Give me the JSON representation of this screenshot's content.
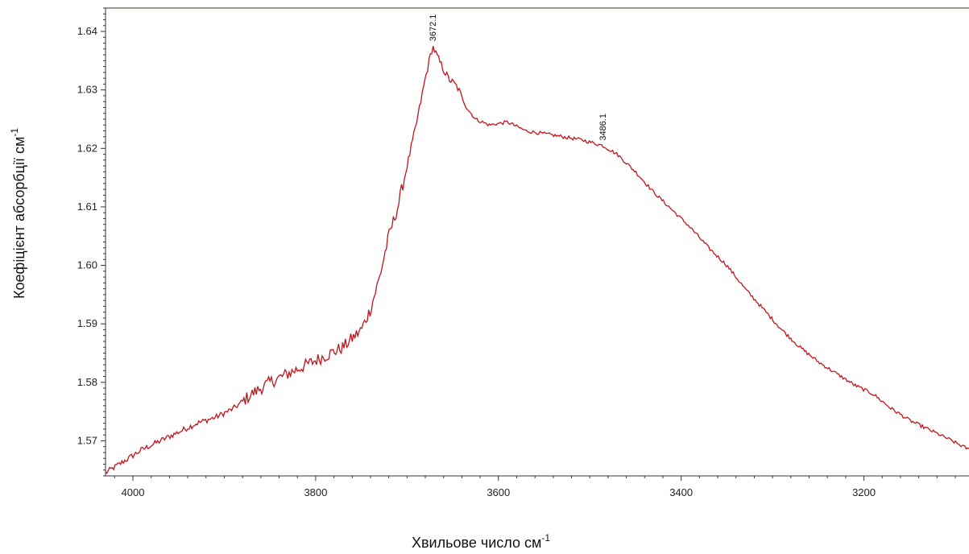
{
  "chart_data": {
    "type": "line",
    "xlabel": "Хвильове число см",
    "xlabel_sup": "-1",
    "ylabel": "Коефіцієнт абсорбції см",
    "ylabel_sup": "-1",
    "xlim": [
      4030,
      3085
    ],
    "ylim": [
      1.564,
      1.644
    ],
    "x_reversed": true,
    "grid": false,
    "x_ticks": [
      {
        "value": 4000,
        "label": "4000"
      },
      {
        "value": 3800,
        "label": "3800"
      },
      {
        "value": 3600,
        "label": "3600"
      },
      {
        "value": 3400,
        "label": "3400"
      },
      {
        "value": 3200,
        "label": "3200"
      }
    ],
    "y_ticks": [
      {
        "value": 1.57,
        "label": "1.57"
      },
      {
        "value": 1.58,
        "label": "1.58"
      },
      {
        "value": 1.59,
        "label": "1.59"
      },
      {
        "value": 1.6,
        "label": "1.60"
      },
      {
        "value": 1.61,
        "label": "1.61"
      },
      {
        "value": 1.62,
        "label": "1.62"
      },
      {
        "value": 1.63,
        "label": "1.63"
      },
      {
        "value": 1.64,
        "label": "1.64"
      }
    ],
    "annotations": [
      {
        "x": 3672.1,
        "y": 1.6375,
        "label": "3672.1"
      },
      {
        "x": 3486.1,
        "y": 1.6205,
        "label": "3486.1"
      }
    ],
    "series": [
      {
        "color": "#c0141c",
        "x": [
          4030,
          4010,
          3990,
          3970,
          3950,
          3930,
          3910,
          3890,
          3870,
          3850,
          3830,
          3810,
          3790,
          3770,
          3750,
          3740,
          3730,
          3720,
          3710,
          3700,
          3690,
          3680,
          3672.1,
          3665,
          3655,
          3645,
          3635,
          3625,
          3610,
          3590,
          3570,
          3550,
          3530,
          3510,
          3486.1,
          3470,
          3450,
          3430,
          3410,
          3390,
          3370,
          3350,
          3330,
          3310,
          3290,
          3270,
          3250,
          3230,
          3210,
          3190,
          3170,
          3150,
          3130,
          3110,
          3085
        ],
        "y": [
          1.5645,
          1.5665,
          1.5685,
          1.57,
          1.5715,
          1.573,
          1.574,
          1.5755,
          1.578,
          1.58,
          1.5815,
          1.583,
          1.5845,
          1.586,
          1.589,
          1.5925,
          1.598,
          1.605,
          1.61,
          1.617,
          1.624,
          1.632,
          1.6375,
          1.635,
          1.632,
          1.6305,
          1.627,
          1.625,
          1.624,
          1.6245,
          1.623,
          1.6225,
          1.622,
          1.6215,
          1.6205,
          1.619,
          1.616,
          1.6125,
          1.6095,
          1.6065,
          1.603,
          1.6,
          1.596,
          1.5925,
          1.589,
          1.586,
          1.5835,
          1.5815,
          1.5795,
          1.578,
          1.5755,
          1.5735,
          1.572,
          1.5705,
          1.5685
        ]
      }
    ]
  }
}
